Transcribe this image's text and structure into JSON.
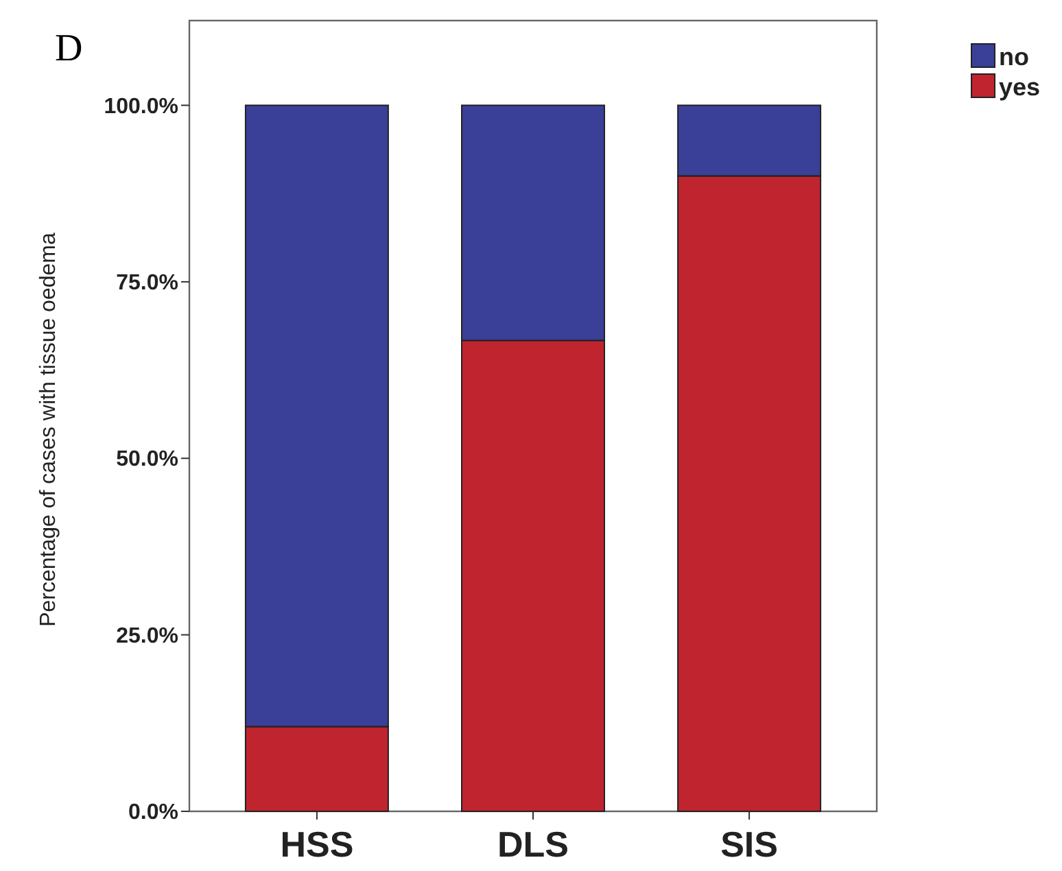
{
  "chart_data": {
    "type": "bar",
    "title": "D",
    "ylabel": "Percentage of cases with tissue oedema",
    "categories": [
      "HSS",
      "DLS",
      "SIS"
    ],
    "series": [
      {
        "name": "yes",
        "color": "#c0242f",
        "values": [
          12,
          66.7,
          90
        ]
      },
      {
        "name": "no",
        "color": "#3a3f98",
        "values": [
          88,
          33.3,
          10
        ]
      }
    ],
    "stacked": true,
    "ylim": [
      0,
      112
    ],
    "yticks": [
      {
        "value": 0,
        "label": "0.0%"
      },
      {
        "value": 25,
        "label": "25.0%"
      },
      {
        "value": 50,
        "label": "50.0%"
      },
      {
        "value": 75,
        "label": "75.0%"
      },
      {
        "value": 100,
        "label": "100.0%"
      }
    ],
    "legend": "top right",
    "grid": false
  }
}
